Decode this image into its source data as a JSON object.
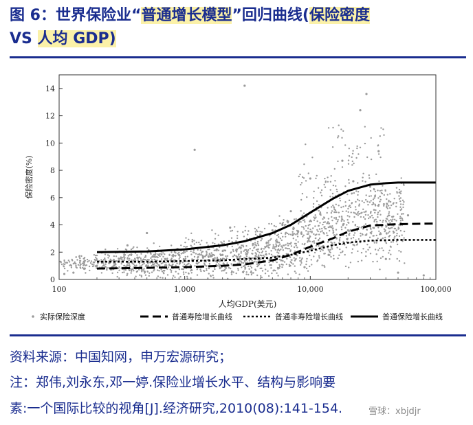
{
  "header": {
    "title_line1_prefix": "图 6：世界保险业“",
    "title_line1_hl": "普通增长模型",
    "title_line1_mid": "”回归曲线(",
    "title_line1_tail": "保险密度",
    "title_line2_prefix": "VS ",
    "title_line2_hl": "人均 GDP)"
  },
  "footer": {
    "source": "资料来源：中国知网，申万宏源研究；",
    "note_line1": "注：郑伟,刘永东,邓一婷.保险业增长水平、结构与影响要",
    "note_line2": "素:一个国际比较的视角[J].经济研究,2010(08):141-154.",
    "watermark": "雪球：xbjdjr"
  },
  "colors": {
    "title": "#1a2d8f",
    "highlight": "#fbf1a8",
    "scatter": "#9a9a9a",
    "curves": "#000000"
  },
  "chart_data": {
    "type": "scatter",
    "xlabel": "人均GDP(美元)",
    "ylabel": "保险密度(%)",
    "x_scale": "log",
    "xlim": [
      100,
      100000
    ],
    "ylim": [
      0,
      15
    ],
    "x_ticks": [
      100,
      1000,
      10000,
      100000
    ],
    "x_tick_labels": [
      "100",
      "1,000",
      "10,000",
      "100,000"
    ],
    "y_ticks": [
      0,
      2,
      4,
      6,
      8,
      10,
      12,
      14
    ],
    "y_tick_labels": [
      "0",
      "2",
      "4",
      "6",
      "8",
      "10",
      "12",
      "14"
    ],
    "grid": false,
    "legend_position": "bottom",
    "series": [
      {
        "name": "实际保险深度",
        "style": "points",
        "x": [
          110,
          130,
          160,
          200,
          250,
          300,
          350,
          420,
          500,
          600,
          700,
          800,
          900,
          1000,
          1200,
          1400,
          1600,
          1800,
          2000,
          2300,
          2600,
          3000,
          3500,
          4000,
          4500,
          5000,
          6000,
          7000,
          8000,
          9000,
          10000,
          12000,
          14000,
          16000,
          18000,
          20000,
          22000,
          25000,
          28000,
          30000,
          35000,
          40000,
          50000,
          60000,
          80000
        ],
        "y": [
          0.4,
          0.5,
          0.8,
          1.0,
          1.2,
          1.4,
          2.5,
          1.6,
          3.4,
          1.2,
          1.5,
          1.3,
          1.8,
          1.4,
          9.5,
          1.6,
          1.7,
          2.2,
          1.8,
          3.8,
          2.2,
          14.2,
          2.6,
          3.3,
          2.7,
          3.6,
          4.0,
          5.0,
          3.5,
          0.9,
          7.4,
          4.8,
          1.8,
          6.1,
          8.7,
          3.6,
          7.2,
          12.4,
          13.6,
          6.8,
          9.4,
          1.5,
          0.5,
          4.7,
          0.3
        ]
      },
      {
        "name": "普通寿险增长曲线",
        "style": "dashed",
        "x": [
          200,
          500,
          1000,
          2000,
          3000,
          5000,
          7000,
          10000,
          15000,
          20000,
          30000,
          50000,
          100000
        ],
        "y": [
          0.8,
          0.85,
          0.9,
          1.0,
          1.1,
          1.4,
          1.8,
          2.4,
          3.0,
          3.5,
          3.95,
          4.05,
          4.1
        ]
      },
      {
        "name": "普通非寿险增长曲线",
        "style": "dotted",
        "x": [
          200,
          500,
          1000,
          2000,
          3000,
          5000,
          7000,
          10000,
          15000,
          20000,
          30000,
          50000,
          100000
        ],
        "y": [
          1.3,
          1.3,
          1.35,
          1.4,
          1.5,
          1.6,
          1.8,
          2.1,
          2.5,
          2.7,
          2.85,
          2.9,
          2.9
        ]
      },
      {
        "name": "普通保险增长曲线",
        "style": "solid",
        "x": [
          200,
          500,
          1000,
          2000,
          3000,
          5000,
          7000,
          10000,
          15000,
          20000,
          30000,
          40000,
          50000,
          70000,
          100000
        ],
        "y": [
          2.0,
          2.05,
          2.2,
          2.5,
          2.8,
          3.4,
          4.0,
          4.9,
          5.9,
          6.5,
          6.95,
          7.05,
          7.1,
          7.1,
          7.1
        ]
      }
    ]
  }
}
